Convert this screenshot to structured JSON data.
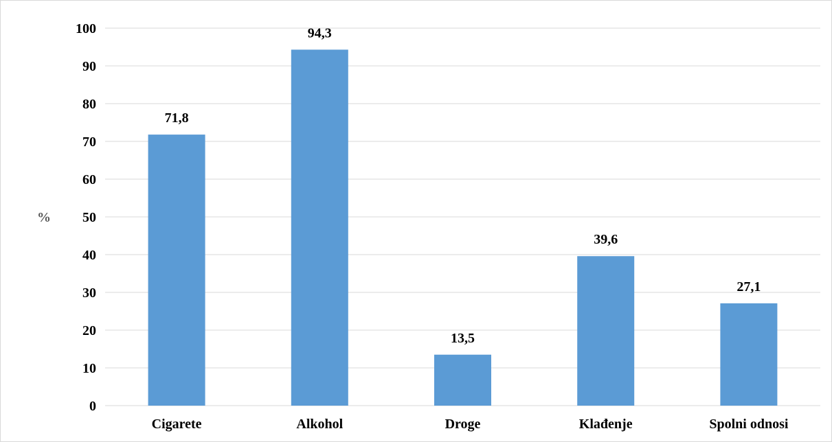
{
  "chart_data": {
    "type": "bar",
    "categories": [
      "Cigarete",
      "Alkohol",
      "Droge",
      "Klađenje",
      "Spolni odnosi"
    ],
    "values": [
      71.8,
      94.3,
      13.5,
      39.6,
      27.1
    ],
    "value_labels": [
      "71,8",
      "94,3",
      "13,5",
      "39,6",
      "27,1"
    ],
    "title": "",
    "xlabel": "",
    "ylabel": "%",
    "ylim": [
      0,
      100
    ],
    "yticks": [
      0,
      10,
      20,
      30,
      40,
      50,
      60,
      70,
      80,
      90,
      100
    ],
    "grid": true,
    "legend": "none",
    "bar_color": "#5b9bd5"
  }
}
